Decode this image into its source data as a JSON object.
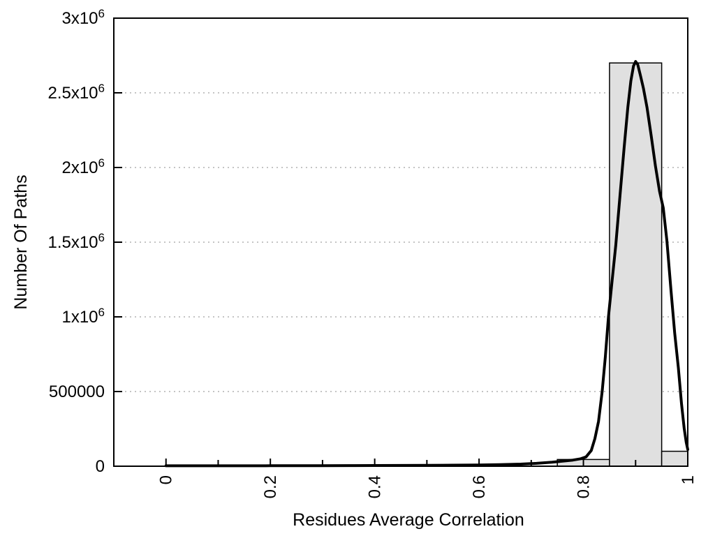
{
  "chart_data": {
    "type": "bar",
    "subtype": "histogram-with-fit-curve",
    "title": "",
    "xlabel": "Residues Average Correlation",
    "ylabel": "Number Of Paths",
    "xlim": [
      -0.1,
      1.0
    ],
    "ylim": [
      0,
      3000000
    ],
    "grid": {
      "axis": "y",
      "style": "dotted",
      "color": "#b0b0b0"
    },
    "frame_color": "#000000",
    "bars": {
      "fill": "#e0e0e0",
      "stroke": "#000000",
      "bins": [
        {
          "x0": 0.75,
          "x1": 0.85,
          "value": 45000
        },
        {
          "x0": 0.85,
          "x1": 0.95,
          "value": 2700000
        },
        {
          "x0": 0.95,
          "x1": 1.0,
          "value": 100000
        }
      ]
    },
    "curve": {
      "name": "fit-curve",
      "color": "#000000",
      "peak_x": 0.9,
      "peak_value": 2710000,
      "points": [
        [
          0.0,
          3000
        ],
        [
          0.05,
          3000
        ],
        [
          0.1,
          3000
        ],
        [
          0.15,
          3000
        ],
        [
          0.2,
          3200
        ],
        [
          0.25,
          3400
        ],
        [
          0.3,
          3700
        ],
        [
          0.35,
          4000
        ],
        [
          0.4,
          4500
        ],
        [
          0.45,
          5000
        ],
        [
          0.5,
          5800
        ],
        [
          0.55,
          7000
        ],
        [
          0.6,
          8500
        ],
        [
          0.64,
          10500
        ],
        [
          0.68,
          14000
        ],
        [
          0.71,
          19000
        ],
        [
          0.74,
          27000
        ],
        [
          0.76,
          34000
        ],
        [
          0.78,
          41000
        ],
        [
          0.795,
          50000
        ],
        [
          0.805,
          62000
        ],
        [
          0.815,
          105000
        ],
        [
          0.822,
          185000
        ],
        [
          0.829,
          300000
        ],
        [
          0.836,
          500000
        ],
        [
          0.842,
          730000
        ],
        [
          0.848,
          1000000
        ],
        [
          0.855,
          1240000
        ],
        [
          0.862,
          1480000
        ],
        [
          0.87,
          1810000
        ],
        [
          0.878,
          2130000
        ],
        [
          0.885,
          2400000
        ],
        [
          0.891,
          2580000
        ],
        [
          0.896,
          2680000
        ],
        [
          0.9,
          2710000
        ],
        [
          0.904,
          2690000
        ],
        [
          0.909,
          2620000
        ],
        [
          0.915,
          2530000
        ],
        [
          0.922,
          2400000
        ],
        [
          0.93,
          2210000
        ],
        [
          0.938,
          2010000
        ],
        [
          0.946,
          1840000
        ],
        [
          0.953,
          1730000
        ],
        [
          0.96,
          1510000
        ],
        [
          0.968,
          1170000
        ],
        [
          0.975,
          890000
        ],
        [
          0.982,
          660000
        ],
        [
          0.988,
          420000
        ],
        [
          0.993,
          255000
        ],
        [
          0.997,
          160000
        ],
        [
          1.0,
          112000
        ]
      ]
    },
    "x_axis": {
      "major_ticks": [
        {
          "value": 0,
          "label": "0"
        },
        {
          "value": 0.2,
          "label": "0.2"
        },
        {
          "value": 0.4,
          "label": "0.4"
        },
        {
          "value": 0.6,
          "label": "0.6"
        },
        {
          "value": 0.8,
          "label": "0.8"
        },
        {
          "value": 1,
          "label": "1"
        }
      ],
      "minor_ticks": [
        0.1,
        0.3,
        0.5,
        0.7,
        0.9
      ],
      "label_rotation_deg": -90
    },
    "y_axis": {
      "ticks": [
        {
          "value": 0,
          "base": "0",
          "exp": ""
        },
        {
          "value": 500000,
          "base": "500000",
          "exp": ""
        },
        {
          "value": 1000000,
          "base": "1x10",
          "exp": "6"
        },
        {
          "value": 1500000,
          "base": "1.5x10",
          "exp": "6"
        },
        {
          "value": 2000000,
          "base": "2x10",
          "exp": "6"
        },
        {
          "value": 2500000,
          "base": "2.5x10",
          "exp": "6"
        },
        {
          "value": 3000000,
          "base": "3x10",
          "exp": "6"
        }
      ]
    }
  }
}
